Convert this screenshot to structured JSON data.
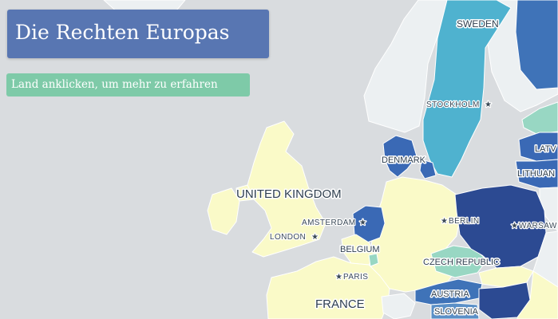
{
  "title": "Die Rechten Europas",
  "hint": "Land anklicken, um mehr zu erfahren",
  "colors": {
    "sea": "#d9dcdf",
    "title_bg": "#5876b2",
    "hint_bg": "#7ecaa8",
    "nonEU": "#ecf0f2"
  },
  "countries": [
    {
      "name": "UNITED KINGDOM",
      "color": "#fafac8"
    },
    {
      "name": "FRANCE",
      "color": "#fafac8"
    },
    {
      "name": "BELGIUM",
      "color": "#fafac8"
    },
    {
      "name": "SWEDEN",
      "color": "#4fb2cf"
    },
    {
      "name": "DENMARK",
      "color": "#3a69b5"
    },
    {
      "name": "CZECH REPUBLIC",
      "color": "#98d7c3"
    },
    {
      "name": "AUSTRIA",
      "color": "#3f73b8"
    },
    {
      "name": "SLOVENIA",
      "color": "#5b90c7"
    },
    {
      "name": "LATVIA",
      "color": "#3a69b5"
    },
    {
      "name": "LITHUANIA",
      "color": "#3a69b5"
    }
  ],
  "labels": {
    "countries": {
      "sweden": "SWEDEN",
      "denmark": "DENMARK",
      "uk": "UNITED KINGDOM",
      "belgium": "BELGIUM",
      "france": "FRANCE",
      "czech": "CZECH REPUBLIC",
      "austria": "AUSTRIA",
      "slovenia": "SLOVENIA",
      "latvia": "LATV",
      "lithuania": "LITHUAN"
    },
    "cities": {
      "stockholm": "STOCKHOLM",
      "amsterdam": "AMSTERDAM",
      "london": "LONDON",
      "berlin": "BERLIN",
      "paris": "PARIS",
      "warsaw": "WARSAW"
    },
    "city_marker": "★"
  }
}
